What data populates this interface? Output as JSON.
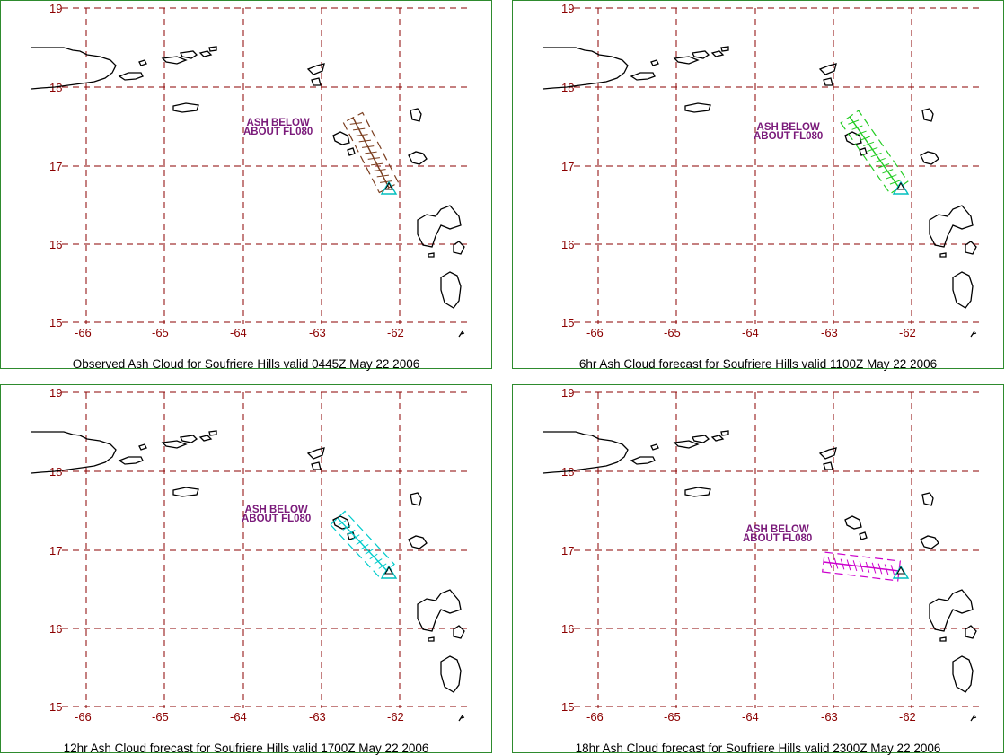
{
  "map_config": {
    "lat_ticks": [
      "19",
      "18",
      "17",
      "16",
      "15"
    ],
    "lon_ticks": [
      "-66",
      "-65",
      "-64",
      "-63",
      "-62"
    ],
    "grid_color": "#8b0000",
    "coast_color": "#000000",
    "frame_color": "#2e8b2e",
    "label_color": "#7a1a7a"
  },
  "panels": [
    {
      "caption": "Observed Ash Cloud for Soufriere  Hills valid 0445Z May 22 2006",
      "ash_line1": "ASH BELOW",
      "ash_line2": "ABOUT FL080",
      "color": "#7a3d1e"
    },
    {
      "caption": "6hr Ash Cloud forecast for Soufriere  Hills valid 1100Z May 22 2006",
      "ash_line1": "ASH BELOW",
      "ash_line2": "ABOUT FL080",
      "color": "#22cc22"
    },
    {
      "caption": "12hr Ash Cloud forecast for Soufriere  Hills valid 1700Z May 22 2006",
      "ash_line1": "ASH BELOW",
      "ash_line2": "ABOUT FL080",
      "color": "#00cccc"
    },
    {
      "caption": "18hr Ash Cloud forecast for Soufriere  Hills valid 2300Z May 22 2006",
      "ash_line1": "ASH BELOW",
      "ash_line2": "ABOUT FL080",
      "color": "#cc00cc"
    }
  ]
}
